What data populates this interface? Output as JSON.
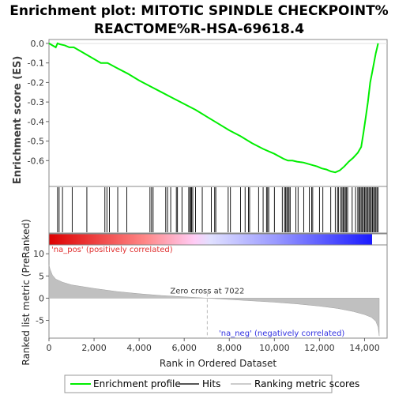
{
  "chart_data": {
    "type": "line",
    "title": [
      "Enrichment plot: MITOTIC SPINDLE CHECKPOINT%",
      "REACTOME%R-HSA-69618.4"
    ],
    "top_panel": {
      "ylabel": "Enrichment score (ES)",
      "ylim": [
        -0.72,
        0.02
      ],
      "yticks": [
        "0.0",
        "-0.1",
        "-0.2",
        "-0.3",
        "-0.4",
        "-0.5",
        "-0.6"
      ],
      "ytick_values": [
        0.0,
        -0.1,
        -0.2,
        -0.3,
        -0.4,
        -0.5,
        -0.6
      ],
      "series": [
        {
          "name": "Enrichment profile",
          "color": "#00ee00",
          "x": [
            0,
            300,
            380,
            500,
            700,
            900,
            1100,
            1400,
            1700,
            2000,
            2300,
            2600,
            3000,
            3500,
            4000,
            4500,
            5000,
            5500,
            6000,
            6500,
            7000,
            7500,
            8000,
            8500,
            9000,
            9500,
            10000,
            10400,
            10600,
            10800,
            11000,
            11300,
            11600,
            11900,
            12100,
            12300,
            12500,
            12700,
            12900,
            13100,
            13300,
            13500,
            13700,
            13850,
            13950,
            14050,
            14150,
            14250,
            14350,
            14450,
            14500,
            14550,
            14600
          ],
          "y": [
            0.0,
            -0.02,
            0.0,
            -0.005,
            -0.01,
            -0.02,
            -0.02,
            -0.04,
            -0.06,
            -0.08,
            -0.1,
            -0.1,
            -0.125,
            -0.155,
            -0.19,
            -0.22,
            -0.25,
            -0.28,
            -0.31,
            -0.34,
            -0.375,
            -0.41,
            -0.445,
            -0.475,
            -0.51,
            -0.54,
            -0.565,
            -0.59,
            -0.6,
            -0.6,
            -0.605,
            -0.61,
            -0.62,
            -0.63,
            -0.64,
            -0.645,
            -0.655,
            -0.66,
            -0.65,
            -0.63,
            -0.605,
            -0.585,
            -0.56,
            -0.53,
            -0.46,
            -0.38,
            -0.3,
            -0.2,
            -0.14,
            -0.08,
            -0.05,
            -0.025,
            0.0
          ]
        }
      ]
    },
    "hits_panel": {
      "hit_positions": [
        380,
        450,
        600,
        1030,
        1680,
        2480,
        2570,
        2680,
        3050,
        3450,
        4480,
        4550,
        4620,
        5180,
        5260,
        5400,
        5650,
        5700,
        5900,
        6200,
        6250,
        6300,
        6330,
        6380,
        6500,
        6800,
        7200,
        7350,
        7400,
        7950,
        8050,
        8500,
        8700,
        8850,
        8900,
        9300,
        9500,
        9650,
        9700,
        9750,
        10000,
        10350,
        10450,
        10500,
        10550,
        10600,
        10650,
        10700,
        10950,
        11050,
        11300,
        11550,
        11650,
        11700,
        12000,
        12150,
        12500,
        12700,
        12800,
        12850,
        12950,
        13000,
        13050,
        13100,
        13150,
        13200,
        13250,
        13450,
        13600,
        13700,
        13750,
        13800,
        13850,
        13900,
        13950,
        14000,
        14050,
        14100,
        14150,
        14200,
        14250,
        14300,
        14350,
        14400,
        14450,
        14500,
        14550,
        14600
      ],
      "gradient_stops": [
        "#dd0000",
        "#ff8888",
        "#ffcccc",
        "#ccccff",
        "#6666ff",
        "#1a1aff"
      ]
    },
    "bottom_panel": {
      "ylabel": "Ranked list metric (PreRanked)",
      "xlabel": "Rank in Ordered Dataset",
      "ylim": [
        -9,
        12
      ],
      "yticks": [
        "10",
        "5",
        "0",
        "-5"
      ],
      "ytick_values": [
        10,
        5,
        0,
        -5
      ],
      "xlim": [
        0,
        15000
      ],
      "xticks": [
        "0",
        "2,000",
        "4,000",
        "6,000",
        "8,000",
        "10,000",
        "12,000",
        "14,000"
      ],
      "xtick_values": [
        0,
        2000,
        4000,
        6000,
        8000,
        10000,
        12000,
        14000
      ],
      "metric_x": [
        0,
        50,
        150,
        300,
        600,
        1000,
        2000,
        3000,
        4000,
        5000,
        6000,
        7022,
        8000,
        9000,
        10000,
        11000,
        12000,
        12800,
        13500,
        14000,
        14300,
        14500,
        14600,
        14650
      ],
      "metric_y": [
        7.5,
        6.5,
        5.2,
        4.3,
        3.6,
        3.0,
        2.2,
        1.5,
        1.0,
        0.6,
        0.3,
        0.0,
        -0.3,
        -0.6,
        -0.9,
        -1.3,
        -1.8,
        -2.3,
        -3.0,
        -3.7,
        -4.3,
        -5.2,
        -6.5,
        -8.5
      ],
      "zero_cross_label": "Zero cross at 7022",
      "zero_cross_x": 7022,
      "pos_label": "'na_pos' (positively correlated)",
      "neg_label": "'na_neg' (negatively correlated)",
      "pos_color": "#ff0000",
      "neg_color": "#0000ff"
    },
    "legend": {
      "placement": "bottom",
      "items": [
        {
          "label": "Enrichment profile",
          "color": "#00ee00"
        },
        {
          "label": "Hits",
          "color": "#000000"
        },
        {
          "label": "Ranking metric scores",
          "color": "#cccccc"
        }
      ]
    }
  }
}
